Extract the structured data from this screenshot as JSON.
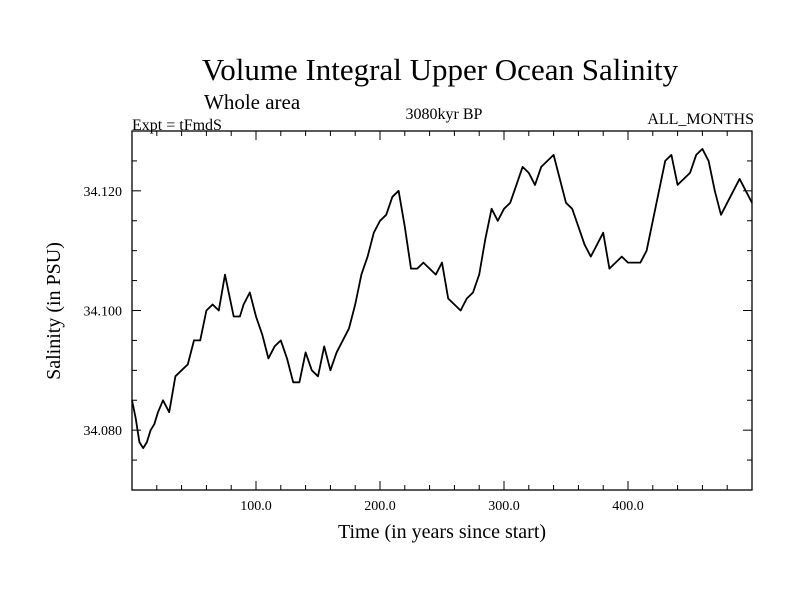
{
  "chart_data": {
    "type": "line",
    "title": "Volume Integral Upper Ocean Salinity",
    "subtitle": "Whole area",
    "experiment": "Expt = tFmdS",
    "period": "3080kyr BP",
    "months": "ALL_MONTHS",
    "xlabel": "Time (in years since start)",
    "ylabel": "Salinity (in PSU)",
    "xlim": [
      0,
      500
    ],
    "ylim": [
      34.07,
      34.13
    ],
    "xticks": [
      100,
      200,
      300,
      400
    ],
    "xtick_labels": [
      "100.0",
      "200.0",
      "300.0",
      "400.0"
    ],
    "yticks": [
      34.08,
      34.1,
      34.12
    ],
    "ytick_labels": [
      "34.080",
      "34.100",
      "34.120"
    ],
    "grid": false,
    "series": [
      {
        "name": "Salinity",
        "x": [
          0,
          3,
          6,
          9,
          12,
          15,
          18,
          21,
          25,
          30,
          35,
          40,
          45,
          50,
          55,
          60,
          65,
          70,
          75,
          78,
          82,
          87,
          90,
          95,
          100,
          105,
          110,
          115,
          120,
          125,
          130,
          135,
          140,
          145,
          150,
          155,
          160,
          165,
          170,
          175,
          180,
          185,
          190,
          195,
          200,
          205,
          210,
          215,
          220,
          225,
          230,
          235,
          240,
          245,
          250,
          255,
          260,
          265,
          270,
          275,
          280,
          285,
          290,
          295,
          300,
          305,
          310,
          315,
          320,
          325,
          330,
          335,
          340,
          345,
          350,
          355,
          360,
          365,
          370,
          375,
          380,
          385,
          390,
          395,
          400,
          405,
          410,
          415,
          420,
          425,
          430,
          435,
          440,
          445,
          450,
          455,
          460,
          465,
          470,
          475,
          480,
          485,
          490,
          495,
          500
        ],
        "values": [
          34.085,
          34.082,
          34.078,
          34.077,
          34.078,
          34.08,
          34.081,
          34.083,
          34.085,
          34.083,
          34.089,
          34.09,
          34.091,
          34.095,
          34.095,
          34.1,
          34.101,
          34.1,
          34.106,
          34.103,
          34.099,
          34.099,
          34.101,
          34.103,
          34.099,
          34.096,
          34.092,
          34.094,
          34.095,
          34.092,
          34.088,
          34.088,
          34.093,
          34.09,
          34.089,
          34.094,
          34.09,
          34.093,
          34.095,
          34.097,
          34.101,
          34.106,
          34.109,
          34.113,
          34.115,
          34.116,
          34.119,
          34.12,
          34.114,
          34.107,
          34.107,
          34.108,
          34.107,
          34.106,
          34.108,
          34.102,
          34.101,
          34.1,
          34.102,
          34.103,
          34.106,
          34.112,
          34.117,
          34.115,
          34.117,
          34.118,
          34.121,
          34.124,
          34.123,
          34.121,
          34.124,
          34.125,
          34.126,
          34.122,
          34.118,
          34.117,
          34.114,
          34.111,
          34.109,
          34.111,
          34.113,
          34.107,
          34.108,
          34.109,
          34.108,
          34.108,
          34.108,
          34.11,
          34.115,
          34.12,
          34.125,
          34.126,
          34.121,
          34.122,
          34.123,
          34.126,
          34.127,
          34.125,
          34.12,
          34.116,
          34.118,
          34.12,
          34.122,
          34.12,
          34.118
        ]
      }
    ]
  }
}
